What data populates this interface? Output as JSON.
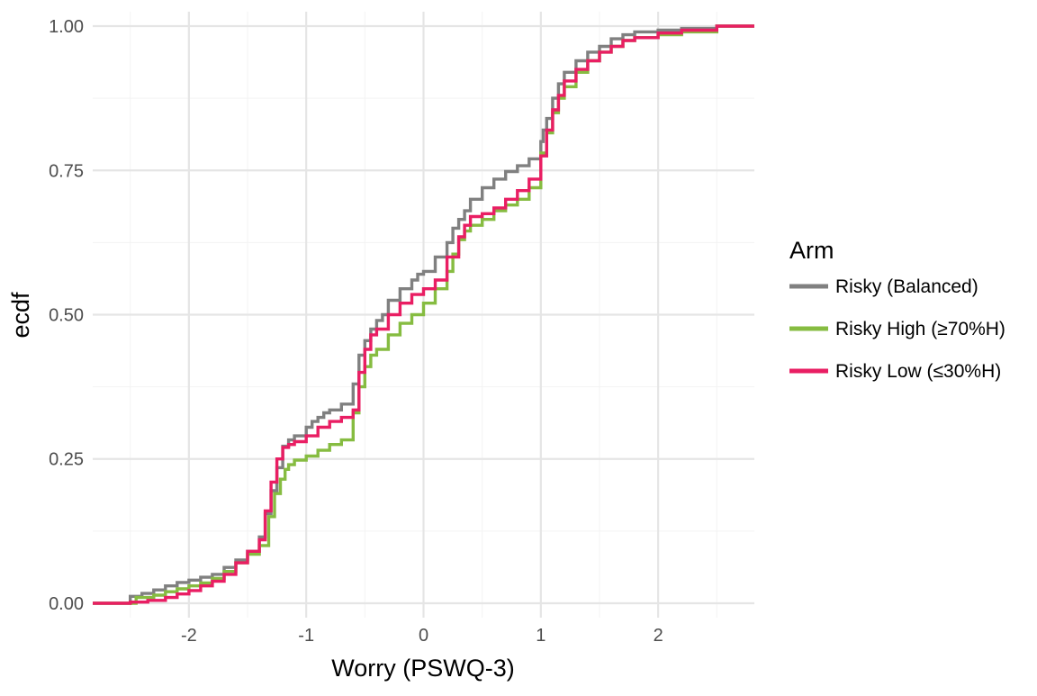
{
  "chart_data": {
    "type": "line",
    "step": true,
    "xlabel": "Worry (PSWQ-3)",
    "ylabel": "ecdf",
    "xlim": [
      -2.82,
      2.82
    ],
    "ylim": [
      -0.025,
      1.025
    ],
    "x_ticks": [
      -2,
      -1,
      0,
      1,
      2
    ],
    "x_tick_labels": [
      "-2",
      "-1",
      "0",
      "1",
      "2"
    ],
    "y_ticks": [
      0,
      0.25,
      0.5,
      0.75,
      1.0
    ],
    "y_tick_labels": [
      "0.00",
      "0.25",
      "0.50",
      "0.75",
      "1.00"
    ],
    "grid": true,
    "legend": {
      "title": "Arm",
      "position": "right"
    },
    "series": [
      {
        "name": "Risky (Balanced)",
        "color": "#808080",
        "x": [
          -2.82,
          -2.5,
          -2.4,
          -2.3,
          -2.2,
          -2.1,
          -2.0,
          -1.9,
          -1.8,
          -1.7,
          -1.6,
          -1.5,
          -1.4,
          -1.35,
          -1.3,
          -1.25,
          -1.2,
          -1.15,
          -1.1,
          -1.0,
          -0.95,
          -0.9,
          -0.85,
          -0.8,
          -0.7,
          -0.6,
          -0.55,
          -0.5,
          -0.45,
          -0.4,
          -0.35,
          -0.3,
          -0.2,
          -0.1,
          -0.05,
          0.0,
          0.1,
          0.2,
          0.25,
          0.3,
          0.35,
          0.4,
          0.5,
          0.6,
          0.7,
          0.8,
          0.9,
          1.0,
          1.02,
          1.05,
          1.1,
          1.15,
          1.2,
          1.3,
          1.4,
          1.5,
          1.6,
          1.7,
          1.8,
          2.0,
          2.2,
          2.5,
          2.82
        ],
        "y": [
          0.0,
          0.012,
          0.017,
          0.023,
          0.03,
          0.036,
          0.04,
          0.045,
          0.05,
          0.062,
          0.075,
          0.09,
          0.115,
          0.155,
          0.195,
          0.235,
          0.272,
          0.283,
          0.29,
          0.305,
          0.315,
          0.322,
          0.33,
          0.335,
          0.345,
          0.38,
          0.43,
          0.455,
          0.475,
          0.49,
          0.5,
          0.525,
          0.545,
          0.56,
          0.57,
          0.575,
          0.6,
          0.625,
          0.65,
          0.665,
          0.68,
          0.7,
          0.72,
          0.735,
          0.748,
          0.758,
          0.77,
          0.8,
          0.82,
          0.84,
          0.875,
          0.9,
          0.92,
          0.94,
          0.955,
          0.965,
          0.978,
          0.985,
          0.99,
          0.993,
          0.996,
          1.0,
          1.0
        ]
      },
      {
        "name": "Risky High (≥70%H)",
        "color": "#86bc41",
        "x": [
          -2.82,
          -2.45,
          -2.3,
          -2.2,
          -2.1,
          -2.0,
          -1.9,
          -1.8,
          -1.7,
          -1.6,
          -1.5,
          -1.4,
          -1.32,
          -1.27,
          -1.22,
          -1.18,
          -1.15,
          -1.1,
          -1.0,
          -0.9,
          -0.8,
          -0.7,
          -0.6,
          -0.55,
          -0.5,
          -0.45,
          -0.4,
          -0.3,
          -0.2,
          -0.1,
          0.0,
          0.1,
          0.2,
          0.25,
          0.3,
          0.35,
          0.4,
          0.5,
          0.6,
          0.7,
          0.8,
          0.9,
          1.0,
          1.05,
          1.1,
          1.15,
          1.2,
          1.3,
          1.4,
          1.5,
          1.6,
          1.7,
          1.8,
          2.0,
          2.2,
          2.5,
          2.82
        ],
        "y": [
          0.0,
          0.01,
          0.014,
          0.02,
          0.025,
          0.03,
          0.035,
          0.043,
          0.055,
          0.07,
          0.085,
          0.1,
          0.15,
          0.19,
          0.215,
          0.232,
          0.24,
          0.248,
          0.255,
          0.265,
          0.275,
          0.283,
          0.33,
          0.375,
          0.41,
          0.43,
          0.44,
          0.465,
          0.485,
          0.5,
          0.52,
          0.545,
          0.575,
          0.605,
          0.63,
          0.645,
          0.655,
          0.665,
          0.68,
          0.69,
          0.7,
          0.72,
          0.78,
          0.815,
          0.85,
          0.875,
          0.895,
          0.92,
          0.94,
          0.955,
          0.965,
          0.975,
          0.98,
          0.985,
          0.99,
          1.0,
          1.0
        ]
      },
      {
        "name": "Risky Low (≤30%H)",
        "color": "#e91e63",
        "x": [
          -2.82,
          -2.7,
          -2.5,
          -2.35,
          -2.2,
          -2.1,
          -2.0,
          -1.9,
          -1.8,
          -1.7,
          -1.6,
          -1.5,
          -1.4,
          -1.35,
          -1.3,
          -1.25,
          -1.2,
          -1.15,
          -1.1,
          -1.0,
          -0.9,
          -0.8,
          -0.7,
          -0.6,
          -0.55,
          -0.5,
          -0.45,
          -0.4,
          -0.3,
          -0.2,
          -0.1,
          0.0,
          0.1,
          0.2,
          0.3,
          0.35,
          0.4,
          0.5,
          0.6,
          0.7,
          0.8,
          0.9,
          1.0,
          1.05,
          1.1,
          1.15,
          1.2,
          1.3,
          1.4,
          1.5,
          1.6,
          1.7,
          1.8,
          2.0,
          2.2,
          2.5,
          2.82
        ],
        "y": [
          0.0,
          0.0,
          0.002,
          0.005,
          0.01,
          0.016,
          0.022,
          0.03,
          0.038,
          0.05,
          0.07,
          0.09,
          0.11,
          0.16,
          0.21,
          0.25,
          0.27,
          0.275,
          0.28,
          0.29,
          0.305,
          0.315,
          0.322,
          0.335,
          0.4,
          0.44,
          0.465,
          0.475,
          0.5,
          0.52,
          0.535,
          0.545,
          0.56,
          0.6,
          0.635,
          0.655,
          0.67,
          0.675,
          0.685,
          0.7,
          0.715,
          0.735,
          0.775,
          0.82,
          0.855,
          0.88,
          0.905,
          0.925,
          0.94,
          0.955,
          0.965,
          0.975,
          0.98,
          0.988,
          0.993,
          1.0,
          1.0
        ]
      }
    ]
  }
}
